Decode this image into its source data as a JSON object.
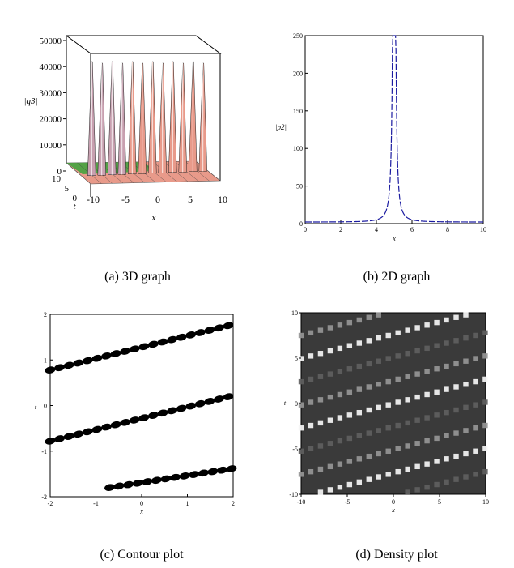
{
  "captions": {
    "a": "(a) 3D graph",
    "b": "(b) 2D graph",
    "c": "(c) Contour plot",
    "d": "(d) Density plot"
  },
  "chart_data": [
    {
      "id": "a",
      "type": "surface3d",
      "title": "3D graph",
      "zlabel": "|q3|",
      "xlabel": "x",
      "ylabel": "t",
      "z_ticks": [
        "50000",
        "40000",
        "30000",
        "20000",
        "10000",
        "0"
      ],
      "x_ticks": [
        "-10",
        "-5",
        "0",
        "5",
        "10"
      ],
      "t_ticks": [
        "10",
        "5",
        "0"
      ],
      "zlim": [
        0,
        50000
      ],
      "xlim": [
        -10,
        10
      ],
      "peak_count": 12,
      "colors": {
        "low": "#3aa33a",
        "mid": "#c8a0b0",
        "high": "#e89a8a",
        "peak": "#ffffff"
      }
    },
    {
      "id": "b",
      "type": "line",
      "title": "2D graph",
      "ylabel": "|p2|",
      "xlabel": "x",
      "xlim": [
        0,
        10
      ],
      "ylim": [
        0,
        250
      ],
      "x_ticks": [
        "0",
        "2",
        "4",
        "6",
        "8",
        "10"
      ],
      "y_ticks": [
        "0",
        "50",
        "100",
        "150",
        "200",
        "250"
      ],
      "peak_x": 5.0,
      "baseline": 2,
      "color": "#1a1aa0"
    },
    {
      "id": "c",
      "type": "contour",
      "title": "Contour plot",
      "xlabel": "x",
      "ylabel": "t",
      "xlim": [
        -2,
        2
      ],
      "ylim": [
        -2,
        2
      ],
      "x_ticks": [
        "-2",
        "-1",
        "0",
        "1",
        "2"
      ],
      "y_ticks": [
        "2",
        "1",
        "0",
        "-1",
        "-2"
      ],
      "bands": [
        {
          "t_start": 0.78,
          "t_end": 1.78,
          "x_from": -2.0,
          "x_to": 2.0
        },
        {
          "t_start": -0.78,
          "t_end": 0.22,
          "x_from": -2.0,
          "x_to": 2.0
        },
        {
          "t_start": -2.0,
          "t_end": -1.38,
          "x_from": -0.7,
          "x_to": 2.0
        }
      ],
      "color": "#000000"
    },
    {
      "id": "d",
      "type": "density",
      "title": "Density plot",
      "xlabel": "x",
      "ylabel": "t",
      "xlim": [
        -10,
        10
      ],
      "ylim": [
        -10,
        10
      ],
      "x_ticks": [
        "-10",
        "-5",
        "0",
        "5",
        "10"
      ],
      "y_ticks": [
        "10",
        "5",
        "0",
        "-5",
        "-10"
      ],
      "background": "#3a3a3a"
    }
  ]
}
